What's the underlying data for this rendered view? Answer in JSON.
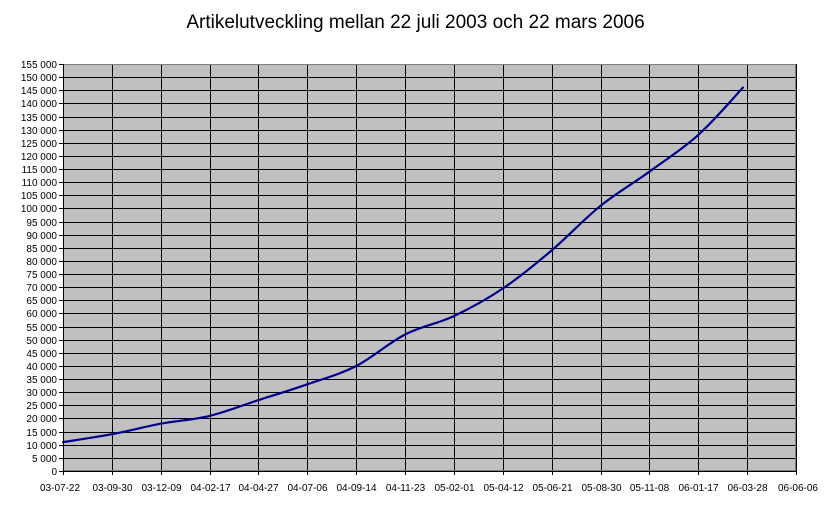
{
  "chart_data": {
    "type": "line",
    "title": "Artikelutveckling mellan 22 juli 2003 och 22 mars 2006",
    "xlabel": "",
    "ylabel": "",
    "ylim": [
      0,
      155000
    ],
    "y_ticks": [
      0,
      5000,
      10000,
      15000,
      20000,
      25000,
      30000,
      35000,
      40000,
      45000,
      50000,
      55000,
      60000,
      65000,
      70000,
      75000,
      80000,
      85000,
      90000,
      95000,
      100000,
      105000,
      110000,
      115000,
      120000,
      125000,
      130000,
      135000,
      140000,
      145000,
      150000,
      155000
    ],
    "y_tick_labels": [
      "0",
      "5 000",
      "10 000",
      "15 000",
      "20 000",
      "25 000",
      "30 000",
      "35 000",
      "40 000",
      "45 000",
      "50 000",
      "55 000",
      "60 000",
      "65 000",
      "70 000",
      "75 000",
      "80 000",
      "85 000",
      "90 000",
      "95 000",
      "100 000",
      "105 000",
      "110 000",
      "115 000",
      "120 000",
      "125 000",
      "130 000",
      "135 000",
      "140 000",
      "145 000",
      "150 000",
      "155 000"
    ],
    "x_tick_labels": [
      "03-07-22",
      "03-09-30",
      "03-12-09",
      "04-02-17",
      "04-04-27",
      "04-07-06",
      "04-09-14",
      "04-11-23",
      "05-02-01",
      "05-04-12",
      "05-06-21",
      "05-08-30",
      "05-11-08",
      "06-01-17",
      "06-03-28",
      "06-06-06"
    ],
    "grid": true,
    "line_color": "#00008b",
    "plot_background": "#c0c0c0",
    "series": [
      {
        "x": [
          "03-07-22",
          "03-09-30",
          "03-12-09",
          "04-02-17",
          "04-04-27",
          "04-07-06",
          "04-09-14",
          "04-11-23",
          "05-02-01",
          "05-04-12",
          "05-06-21",
          "05-08-30",
          "05-11-08",
          "06-01-17",
          "06-03-22"
        ],
        "values": [
          11000,
          14000,
          18000,
          21000,
          27000,
          33000,
          40000,
          52000,
          59000,
          69500,
          84000,
          101000,
          114000,
          128000,
          146000
        ]
      }
    ]
  }
}
